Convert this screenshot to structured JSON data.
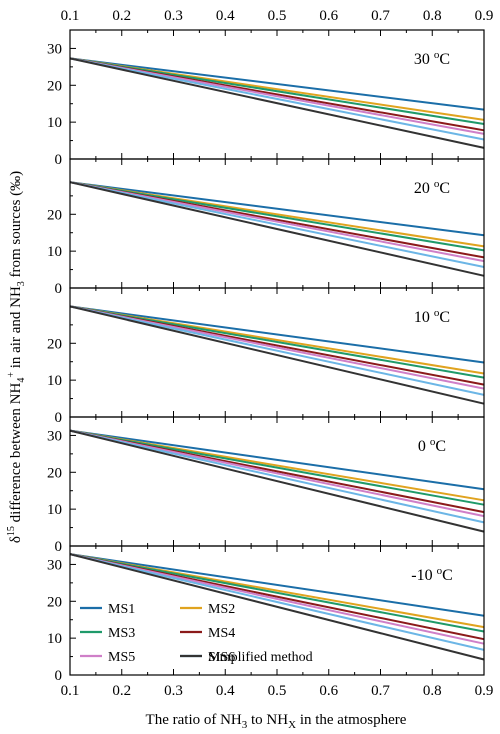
{
  "chart_data": {
    "type": "line",
    "xlabel": {
      "pre": "The ratio of NH",
      "sub1": "3",
      "mid": " to NH",
      "sub2": "X",
      "post": " in the atmosphere"
    },
    "ylabel": {
      "delta": "δ",
      "sup15": "15",
      "t1": " difference between NH",
      "sub4": "4",
      "supplus": "+",
      "t2": " in air and NH",
      "sub3": "3",
      "t3": " from sources (‰)"
    },
    "x_ticks": [
      "0.1",
      "0.2",
      "0.3",
      "0.4",
      "0.5",
      "0.6",
      "0.7",
      "0.8",
      "0.9"
    ],
    "xlim": [
      0.1,
      0.9
    ],
    "colors": {
      "MS1": "#1b6ea8",
      "MS2": "#e0a31f",
      "MS3": "#1f9a6a",
      "MS4": "#8b1a1a",
      "MS5": "#cf7fc8",
      "MS6": "#6cb6e6",
      "Simplified method": "#333333"
    },
    "legend": [
      "MS1",
      "MS2",
      "MS3",
      "MS4",
      "MS5",
      "MS6",
      "Simplified method"
    ],
    "panels": [
      {
        "label_num": "30 ",
        "label_sup": "o",
        "label_unit": "C",
        "ylim": [
          0,
          35
        ],
        "y_ticks": [
          "0",
          "10",
          "20",
          "30"
        ],
        "series": [
          {
            "name": "MS1",
            "x": [
              0.1,
              0.9
            ],
            "y": [
              27.3,
              13.4
            ]
          },
          {
            "name": "MS2",
            "x": [
              0.1,
              0.9
            ],
            "y": [
              27.3,
              10.6
            ]
          },
          {
            "name": "MS3",
            "x": [
              0.1,
              0.9
            ],
            "y": [
              27.3,
              9.5
            ]
          },
          {
            "name": "MS4",
            "x": [
              0.1,
              0.9
            ],
            "y": [
              27.3,
              7.8
            ]
          },
          {
            "name": "MS5",
            "x": [
              0.1,
              0.9
            ],
            "y": [
              27.3,
              6.8
            ]
          },
          {
            "name": "MS6",
            "x": [
              0.1,
              0.9
            ],
            "y": [
              27.3,
              5.3
            ]
          },
          {
            "name": "Simplified method",
            "x": [
              0.1,
              0.9
            ],
            "y": [
              27.3,
              3.0
            ]
          }
        ]
      },
      {
        "label_num": "20 ",
        "label_sup": "o",
        "label_unit": "C",
        "ylim": [
          0,
          35
        ],
        "y_ticks": [
          "0",
          "10",
          "20"
        ],
        "series": [
          {
            "name": "MS1",
            "x": [
              0.1,
              0.9
            ],
            "y": [
              28.7,
              14.3
            ]
          },
          {
            "name": "MS2",
            "x": [
              0.1,
              0.9
            ],
            "y": [
              28.7,
              11.3
            ]
          },
          {
            "name": "MS3",
            "x": [
              0.1,
              0.9
            ],
            "y": [
              28.7,
              10.2
            ]
          },
          {
            "name": "MS4",
            "x": [
              0.1,
              0.9
            ],
            "y": [
              28.7,
              8.3
            ]
          },
          {
            "name": "MS5",
            "x": [
              0.1,
              0.9
            ],
            "y": [
              28.7,
              7.3
            ]
          },
          {
            "name": "MS6",
            "x": [
              0.1,
              0.9
            ],
            "y": [
              28.7,
              5.7
            ]
          },
          {
            "name": "Simplified method",
            "x": [
              0.1,
              0.9
            ],
            "y": [
              28.7,
              3.3
            ]
          }
        ]
      },
      {
        "label_num": "10 ",
        "label_sup": "o",
        "label_unit": "C",
        "ylim": [
          0,
          35
        ],
        "y_ticks": [
          "0",
          "10",
          "20"
        ],
        "series": [
          {
            "name": "MS1",
            "x": [
              0.1,
              0.9
            ],
            "y": [
              30.0,
              14.8
            ]
          },
          {
            "name": "MS2",
            "x": [
              0.1,
              0.9
            ],
            "y": [
              30.0,
              11.8
            ]
          },
          {
            "name": "MS3",
            "x": [
              0.1,
              0.9
            ],
            "y": [
              30.0,
              10.7
            ]
          },
          {
            "name": "MS4",
            "x": [
              0.1,
              0.9
            ],
            "y": [
              30.0,
              8.8
            ]
          },
          {
            "name": "MS5",
            "x": [
              0.1,
              0.9
            ],
            "y": [
              30.0,
              7.7
            ]
          },
          {
            "name": "MS6",
            "x": [
              0.1,
              0.9
            ],
            "y": [
              30.0,
              6.0
            ]
          },
          {
            "name": "Simplified method",
            "x": [
              0.1,
              0.9
            ],
            "y": [
              30.0,
              3.6
            ]
          }
        ]
      },
      {
        "label_num": "0 ",
        "label_sup": "o",
        "label_unit": "C",
        "ylim": [
          0,
          35
        ],
        "y_ticks": [
          "0",
          "10",
          "20",
          "30"
        ],
        "series": [
          {
            "name": "MS1",
            "x": [
              0.1,
              0.9
            ],
            "y": [
              31.3,
              15.4
            ]
          },
          {
            "name": "MS2",
            "x": [
              0.1,
              0.9
            ],
            "y": [
              31.3,
              12.4
            ]
          },
          {
            "name": "MS3",
            "x": [
              0.1,
              0.9
            ],
            "y": [
              31.3,
              11.2
            ]
          },
          {
            "name": "MS4",
            "x": [
              0.1,
              0.9
            ],
            "y": [
              31.3,
              9.2
            ]
          },
          {
            "name": "MS5",
            "x": [
              0.1,
              0.9
            ],
            "y": [
              31.3,
              8.1
            ]
          },
          {
            "name": "MS6",
            "x": [
              0.1,
              0.9
            ],
            "y": [
              31.3,
              6.4
            ]
          },
          {
            "name": "Simplified method",
            "x": [
              0.1,
              0.9
            ],
            "y": [
              31.3,
              3.9
            ]
          }
        ]
      },
      {
        "label_num": "-10 ",
        "label_sup": "o",
        "label_unit": "C",
        "ylim": [
          0,
          35
        ],
        "y_ticks": [
          "0",
          "10",
          "20",
          "30"
        ],
        "series": [
          {
            "name": "MS1",
            "x": [
              0.1,
              0.9
            ],
            "y": [
              32.8,
              16.1
            ]
          },
          {
            "name": "MS2",
            "x": [
              0.1,
              0.9
            ],
            "y": [
              32.8,
              13.0
            ]
          },
          {
            "name": "MS3",
            "x": [
              0.1,
              0.9
            ],
            "y": [
              32.8,
              11.8
            ]
          },
          {
            "name": "MS4",
            "x": [
              0.1,
              0.9
            ],
            "y": [
              32.8,
              9.7
            ]
          },
          {
            "name": "MS5",
            "x": [
              0.1,
              0.9
            ],
            "y": [
              32.8,
              8.5
            ]
          },
          {
            "name": "MS6",
            "x": [
              0.1,
              0.9
            ],
            "y": [
              32.8,
              6.8
            ]
          },
          {
            "name": "Simplified method",
            "x": [
              0.1,
              0.9
            ],
            "y": [
              32.8,
              4.2
            ]
          }
        ]
      }
    ]
  }
}
